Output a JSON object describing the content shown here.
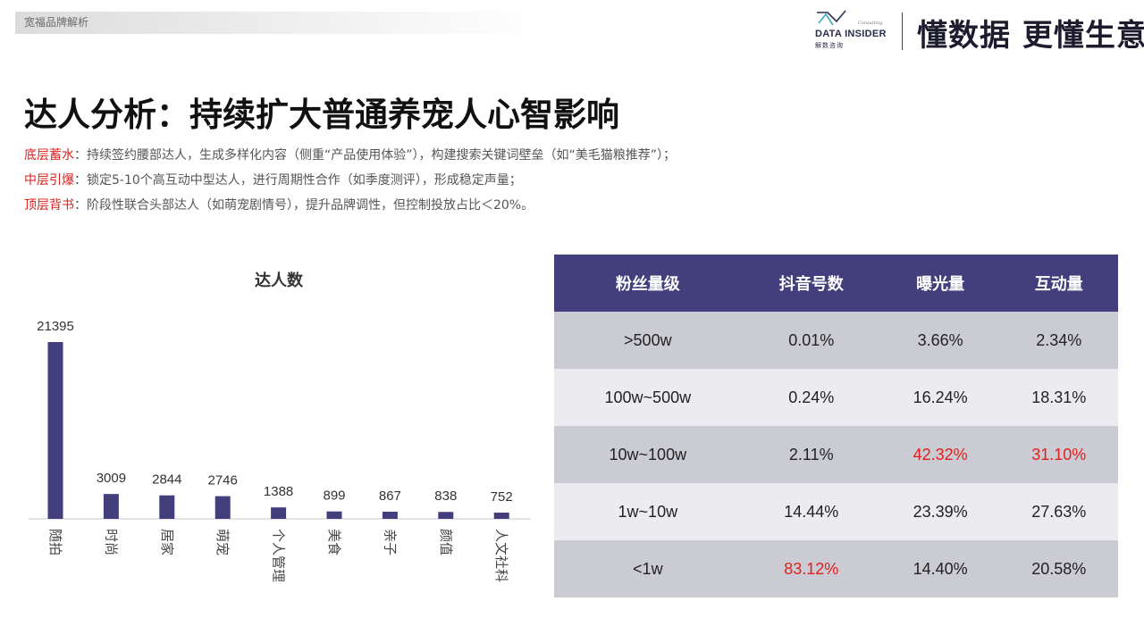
{
  "header": {
    "tag": "宽福品牌解析",
    "brand": {
      "consulting": "Consulting",
      "name": "DATA INSIDER",
      "sub": "解数咨询",
      "slogan": "懂数据 更懂生意"
    }
  },
  "title": "达人分析：持续扩大普通养宠人心智影响",
  "bullets": [
    {
      "key": "底层蓄水",
      "text": "：持续签约腰部达人，生成多样化内容（侧重“产品使用体验”），构建搜索关键词壁垒（如“美毛猫粮推荐”）；"
    },
    {
      "key": "中层引爆",
      "text": "：锁定5-10个高互动中型达人，进行周期性合作（如季度测评），形成稳定声量；"
    },
    {
      "key": "顶层背书",
      "text": "：阶段性联合头部达人（如萌宠剧情号），提升品牌调性，但控制投放占比＜20%。"
    }
  ],
  "chart_data": {
    "type": "bar",
    "title": "达人数",
    "categories": [
      "随拍",
      "时尚",
      "居家",
      "萌宠",
      "个人管理",
      "美食",
      "亲子",
      "颜值",
      "人文社科"
    ],
    "values": [
      21395,
      3009,
      2844,
      2746,
      1388,
      899,
      867,
      838,
      752
    ],
    "data_labels": [
      "21395",
      "3009",
      "2844",
      "2746",
      "1388",
      "899",
      "867",
      "838",
      "752"
    ],
    "bar_color": "#433e7c",
    "xlabel": "",
    "ylabel": "",
    "grid": false,
    "legend": "none"
  },
  "table": {
    "headers": [
      "粉丝量级",
      "抖音号数",
      "曝光量",
      "互动量"
    ],
    "rows": [
      {
        "cells": [
          ">500w",
          "0.01%",
          "3.66%",
          "2.34%"
        ],
        "highlight": []
      },
      {
        "cells": [
          "100w~500w",
          "0.24%",
          "16.24%",
          "18.31%"
        ],
        "highlight": []
      },
      {
        "cells": [
          "10w~100w",
          "2.11%",
          "42.32%",
          "31.10%"
        ],
        "highlight": [
          2,
          3
        ]
      },
      {
        "cells": [
          "1w~10w",
          "14.44%",
          "23.39%",
          "27.63%"
        ],
        "highlight": []
      },
      {
        "cells": [
          "<1w",
          "83.12%",
          "14.40%",
          "20.58%"
        ],
        "highlight": [
          1
        ]
      }
    ],
    "header_color": "#433e7c",
    "highlight_color": "#e0201d"
  }
}
